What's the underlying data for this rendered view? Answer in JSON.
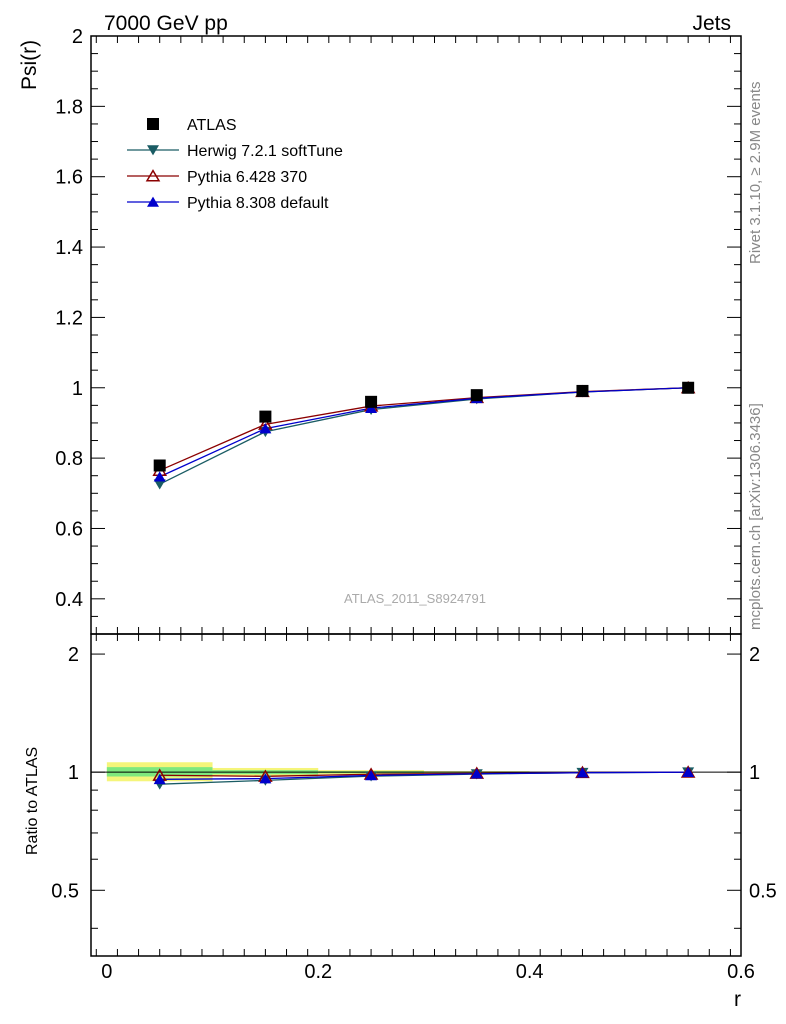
{
  "header": {
    "left": "7000 GeV pp",
    "right": "Jets"
  },
  "side_labels": {
    "rivet": "Rivet 3.1.10, ≥ 2.9M events",
    "mcplots": "mcplots.cern.ch [arXiv:1306.3436]"
  },
  "analysis_id": "ATLAS_2011_S8924791",
  "colors": {
    "atlas": "#000000",
    "herwig": "#1a5c64",
    "pythia6": "#8b0000",
    "pythia8": "#0000cc",
    "band_outer": "#f5f57a",
    "band_inner": "#7ee87e"
  },
  "chart_data": [
    {
      "type": "line",
      "panel": "main",
      "ylabel": "Psi(r)",
      "xlabel": "",
      "xlim": [
        -0.015,
        0.6
      ],
      "ylim": [
        0.3,
        2.0
      ],
      "yticks": [
        0.4,
        0.6,
        0.8,
        1.0,
        1.2,
        1.4,
        1.6,
        1.8,
        2.0
      ],
      "ytick_labels": [
        "0.4",
        "0.6",
        "0.8",
        "1",
        "1.2",
        "1.4",
        "1.6",
        "1.8",
        "2"
      ],
      "x": [
        0.05,
        0.15,
        0.25,
        0.35,
        0.45,
        0.55
      ],
      "legend_position": "top-left",
      "series": [
        {
          "name": "ATLAS",
          "marker": "square",
          "color": "#000000",
          "values": [
            0.779,
            0.918,
            0.96,
            0.979,
            0.991,
            1.0
          ]
        },
        {
          "name": "Herwig 7.2.1 softTune",
          "marker": "triangle-down",
          "color": "#1a5c64",
          "values": [
            0.726,
            0.875,
            0.938,
            0.968,
            0.988,
            1.0
          ]
        },
        {
          "name": "Pythia 6.428 370",
          "marker": "triangle-open",
          "color": "#8b0000",
          "values": [
            0.765,
            0.896,
            0.948,
            0.972,
            0.989,
            1.0
          ]
        },
        {
          "name": "Pythia 8.308 default",
          "marker": "triangle-up",
          "color": "#0000cc",
          "values": [
            0.747,
            0.884,
            0.942,
            0.97,
            0.988,
            1.0
          ]
        }
      ]
    },
    {
      "type": "line",
      "panel": "ratio",
      "ylabel": "Ratio to ATLAS",
      "xlabel": "r",
      "xlim": [
        -0.015,
        0.6
      ],
      "ylim": [
        0.34,
        2.25
      ],
      "scale": "log",
      "yticks": [
        0.5,
        1,
        2
      ],
      "ytick_labels": [
        "0.5",
        "1",
        "2"
      ],
      "xticks": [
        0,
        0.2,
        0.4,
        0.6
      ],
      "xtick_labels": [
        "0",
        "0.2",
        "0.4",
        "0.6"
      ],
      "x": [
        0.05,
        0.15,
        0.25,
        0.35,
        0.45,
        0.55
      ],
      "uncertainty_bands": [
        {
          "x0": 0.0,
          "x1": 0.1,
          "outer": [
            0.948,
            1.06
          ],
          "inner": [
            0.975,
            1.03
          ]
        },
        {
          "x0": 0.1,
          "x1": 0.2,
          "outer": [
            0.975,
            1.025
          ],
          "inner": [
            0.988,
            1.012
          ]
        },
        {
          "x0": 0.2,
          "x1": 0.3,
          "outer": [
            0.988,
            1.012
          ],
          "inner": [
            0.994,
            1.006
          ]
        },
        {
          "x0": 0.3,
          "x1": 0.4,
          "outer": [
            0.994,
            1.006
          ],
          "inner": [
            0.997,
            1.003
          ]
        },
        {
          "x0": 0.4,
          "x1": 0.5,
          "outer": [
            0.997,
            1.003
          ],
          "inner": [
            0.999,
            1.001
          ]
        },
        {
          "x0": 0.5,
          "x1": 0.6,
          "outer": [
            0.999,
            1.001
          ],
          "inner": [
            0.9995,
            1.0005
          ]
        }
      ],
      "series": [
        {
          "name": "Herwig 7.2.1 softTune",
          "marker": "triangle-down",
          "color": "#1a5c64",
          "values": [
            0.932,
            0.953,
            0.977,
            0.989,
            0.997,
            1.0
          ]
        },
        {
          "name": "Pythia 6.428 370",
          "marker": "triangle-open",
          "color": "#8b0000",
          "values": [
            0.982,
            0.976,
            0.988,
            0.993,
            0.998,
            1.0
          ]
        },
        {
          "name": "Pythia 8.308 default",
          "marker": "triangle-up",
          "color": "#0000cc",
          "values": [
            0.959,
            0.963,
            0.981,
            0.991,
            0.997,
            1.0
          ]
        }
      ]
    }
  ]
}
